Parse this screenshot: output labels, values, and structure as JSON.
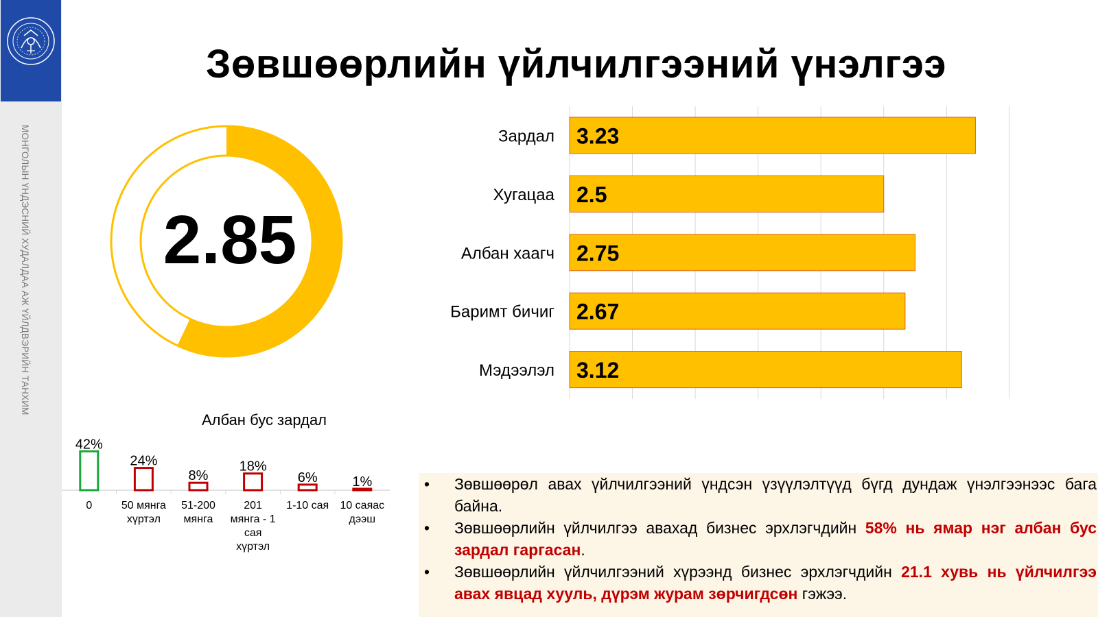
{
  "sidebar": {
    "vertical_text": "МОНГОЛЫН ҮНДЭСНИЙ ХУДАЛДАА АЖ ҮЙЛДВЭРИЙН ТАНХИМ"
  },
  "title": "Зөвшөөрлийн үйлчилгээний үнэлгээ",
  "colors": {
    "accent": "#FFC000",
    "bar_border": "#E06020",
    "logo_blue": "#1F4AA8",
    "highlight_red": "#C00000",
    "green": "#1AA63A",
    "notes_bg": "#FDF5E6"
  },
  "chart_data": [
    {
      "type": "donut",
      "center_label": "2.85",
      "value": 2.85,
      "max": 5
    },
    {
      "type": "bar",
      "orientation": "horizontal",
      "categories": [
        "Зардал",
        "Хугацаа",
        "Албан хаагч",
        "Баримт бичиг",
        "Мэдээлэл"
      ],
      "values": [
        3.23,
        2.5,
        2.75,
        2.67,
        3.12
      ],
      "value_labels": [
        "3.23",
        "2.5",
        "2.75",
        "2.67",
        "3.12"
      ],
      "xlim": [
        0,
        3.5
      ],
      "grid": true
    },
    {
      "type": "bar",
      "title": "Албан бус зардал",
      "categories": [
        "0",
        "50 мянга хүртэл",
        "51-200 мянга",
        "201 мянга - 1 сая хүртэл",
        "1-10 сая",
        "10 саяас дээш"
      ],
      "category_lines": [
        [
          "0"
        ],
        [
          "50 мянга",
          "хүртэл"
        ],
        [
          "51-200",
          "мянга"
        ],
        [
          "201",
          "мянга - 1",
          "сая",
          "хүртэл"
        ],
        [
          "1-10 сая"
        ],
        [
          "10 саяас",
          "дээш"
        ]
      ],
      "values": [
        42,
        24,
        8,
        18,
        6,
        1
      ],
      "value_labels": [
        "42%",
        "24%",
        "8%",
        "18%",
        "6%",
        "1%"
      ],
      "unit": "%",
      "first_bar_color": "#1AA63A",
      "other_bar_color": "#C00000"
    }
  ],
  "notes": [
    {
      "parts": [
        {
          "text": "Зөвшөөрөл авах үйлчилгээний үндсэн үзүүлэлтүүд бүгд дундаж үнэлгээнээс бага байна.",
          "bold": false
        }
      ]
    },
    {
      "parts": [
        {
          "text": "Зөвшөөрлийн үйлчилгээ авахад бизнес эрхлэгчдийн ",
          "bold": false
        },
        {
          "text": "58% нь ямар нэг албан бус зардал гаргасан",
          "bold": true
        },
        {
          "text": ".",
          "bold": false
        }
      ]
    },
    {
      "parts": [
        {
          "text": "Зөвшөөрлийн үйлчилгээний хүрээнд бизнес эрхлэгчдийн ",
          "bold": false
        },
        {
          "text": "21.1 хувь нь үйлчилгээ авах явцад хууль, дүрэм журам зөрчигдсөн",
          "bold": true
        },
        {
          "text": " гэжээ.",
          "bold": false
        }
      ]
    }
  ],
  "bullet_char": "•"
}
